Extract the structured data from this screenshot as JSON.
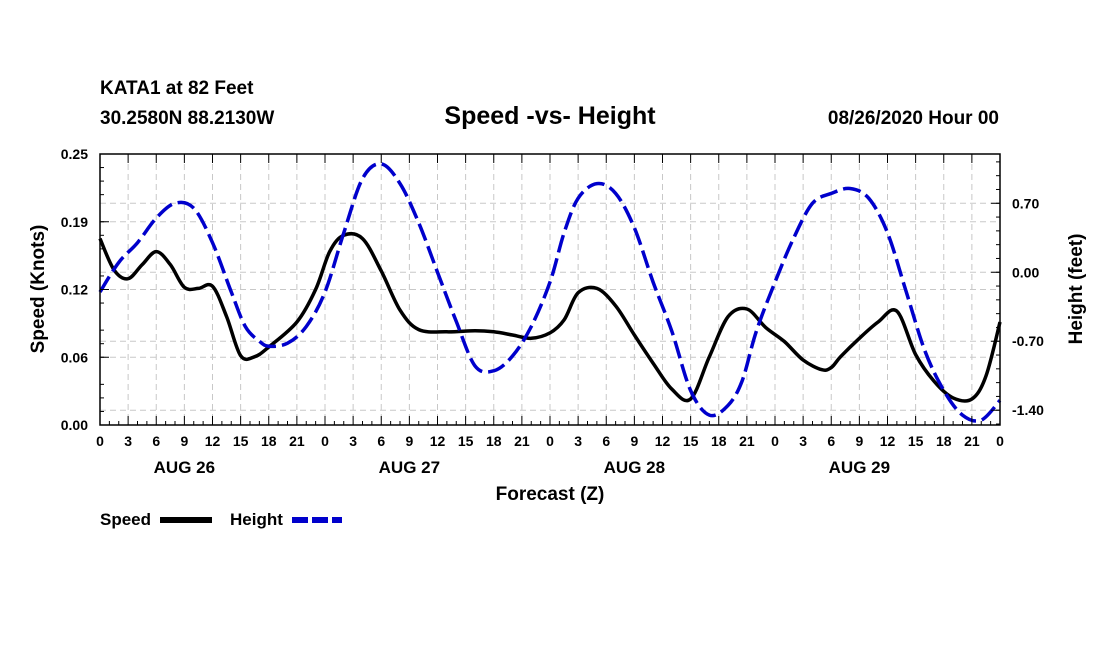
{
  "chart_data": {
    "type": "line",
    "title": "Speed -vs- Height",
    "station_line1": "KATA1 at 82 Feet",
    "station_line2": "30.2580N 88.2130W",
    "run_time": "08/26/2020 Hour 00",
    "xlabel": "Forecast (Z)",
    "ylabel_left": "Speed (Knots)",
    "ylabel_right": "Height (feet)",
    "x_range": [
      0,
      96
    ],
    "y_left_range": [
      0,
      0.25
    ],
    "y_right_range": [
      -1.55,
      1.2
    ],
    "x_tick_values": [
      0,
      3,
      6,
      9,
      12,
      15,
      18,
      21,
      24,
      27,
      30,
      33,
      36,
      39,
      42,
      45,
      48,
      51,
      54,
      57,
      60,
      63,
      66,
      69,
      72,
      75,
      78,
      81,
      84,
      87,
      90,
      93,
      96
    ],
    "x_tick_labels": [
      "0",
      "3",
      "6",
      "9",
      "12",
      "15",
      "18",
      "21",
      "0",
      "3",
      "6",
      "9",
      "12",
      "15",
      "18",
      "21",
      "0",
      "3",
      "6",
      "9",
      "12",
      "15",
      "18",
      "21",
      "0",
      "3",
      "6",
      "9",
      "12",
      "15",
      "18",
      "21",
      "0"
    ],
    "day_labels": [
      {
        "text": "AUG 26",
        "x": 9
      },
      {
        "text": "AUG 27",
        "x": 33
      },
      {
        "text": "AUG 28",
        "x": 57
      },
      {
        "text": "AUG 29",
        "x": 81
      }
    ],
    "y_left_tick_values": [
      0,
      0.0625,
      0.125,
      0.1875,
      0.25
    ],
    "y_left_tick_labels": [
      "0.00",
      "0.06",
      "0.12",
      "0.19",
      "0.25"
    ],
    "y_right_tick_values": [
      -1.4,
      -0.7,
      0.0,
      0.7
    ],
    "y_right_tick_labels": [
      "-1.40",
      "-0.70",
      "0.00",
      "0.70"
    ],
    "series": [
      {
        "name": "Speed",
        "axis": "left",
        "color": "#000000",
        "style": "solid",
        "x": [
          0,
          1.5,
          3,
          4.5,
          6,
          7.5,
          9,
          10.5,
          12,
          13.5,
          15,
          16.5,
          18,
          21,
          23,
          24.5,
          26,
          28,
          30,
          32,
          34,
          37,
          40,
          42,
          44,
          46,
          48,
          49.5,
          51,
          53,
          55,
          57,
          59,
          61,
          63,
          65,
          67,
          69,
          71,
          73,
          75,
          77,
          78,
          79,
          81,
          83,
          85,
          87,
          89,
          91,
          93,
          94.5,
          96
        ],
        "values": [
          0.172,
          0.143,
          0.135,
          0.148,
          0.16,
          0.148,
          0.127,
          0.126,
          0.128,
          0.1,
          0.064,
          0.063,
          0.072,
          0.095,
          0.125,
          0.16,
          0.175,
          0.172,
          0.142,
          0.106,
          0.088,
          0.086,
          0.087,
          0.086,
          0.083,
          0.08,
          0.085,
          0.097,
          0.122,
          0.126,
          0.11,
          0.083,
          0.057,
          0.033,
          0.024,
          0.063,
          0.1,
          0.107,
          0.09,
          0.077,
          0.06,
          0.051,
          0.053,
          0.063,
          0.08,
          0.095,
          0.105,
          0.065,
          0.04,
          0.025,
          0.024,
          0.045,
          0.095
        ]
      },
      {
        "name": "Height",
        "axis": "right",
        "color": "#0000cc",
        "style": "dashed",
        "x": [
          0,
          2,
          4,
          6,
          8,
          10,
          12,
          14,
          15.5,
          17,
          18,
          20,
          22,
          24,
          26,
          28,
          30,
          32,
          34,
          36,
          38,
          40,
          42,
          44,
          46,
          48,
          49.5,
          51,
          53,
          55,
          57,
          59,
          61,
          63,
          65,
          67,
          68.5,
          70,
          72,
          74,
          76,
          78,
          80,
          82,
          84,
          86,
          88,
          90,
          92,
          94,
          96
        ],
        "values": [
          -0.2,
          0.1,
          0.3,
          0.55,
          0.7,
          0.65,
          0.3,
          -0.2,
          -0.55,
          -0.7,
          -0.75,
          -0.72,
          -0.55,
          -0.2,
          0.4,
          0.95,
          1.1,
          0.9,
          0.5,
          0.0,
          -0.5,
          -0.95,
          -1.0,
          -0.85,
          -0.55,
          -0.1,
          0.4,
          0.75,
          0.9,
          0.8,
          0.45,
          -0.1,
          -0.6,
          -1.2,
          -1.45,
          -1.35,
          -1.1,
          -0.6,
          -0.1,
          0.35,
          0.7,
          0.8,
          0.85,
          0.75,
          0.4,
          -0.2,
          -0.8,
          -1.2,
          -1.45,
          -1.5,
          -1.3
        ]
      }
    ],
    "legend": [
      {
        "label": "Speed",
        "color": "#000000",
        "style": "solid"
      },
      {
        "label": "Height",
        "color": "#0000cc",
        "style": "dashed"
      }
    ],
    "grid": true
  }
}
